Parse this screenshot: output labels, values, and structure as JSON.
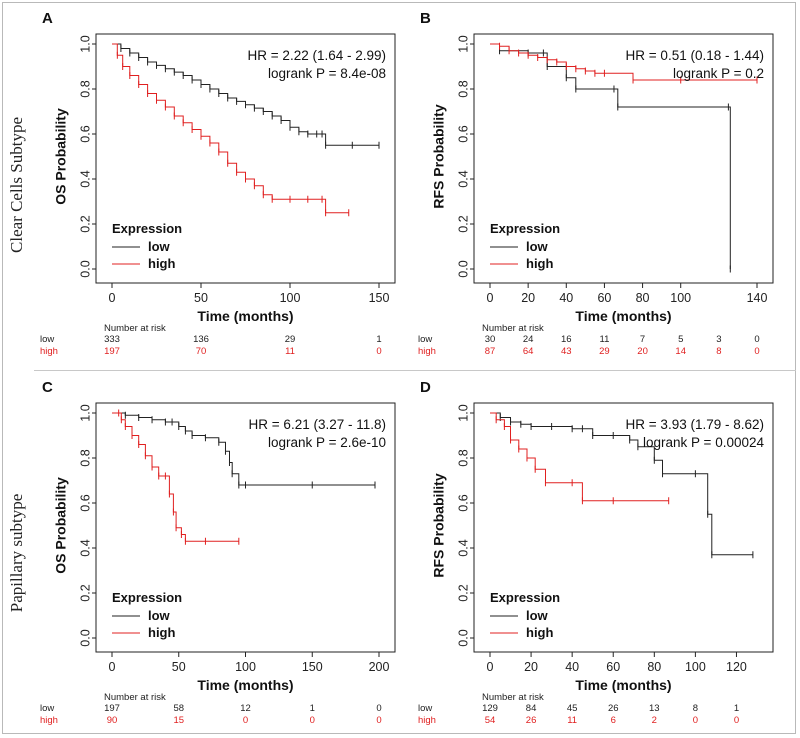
{
  "row_labels": [
    "Clear Cells Subtype",
    "Papillary subtype"
  ],
  "colors": {
    "low": "#222222",
    "high": "#e02020"
  },
  "chart_data": [
    {
      "panel": "A",
      "type": "line",
      "subtype": "kaplan-meier",
      "ylabel": "OS Probability",
      "xlabel": "Time (months)",
      "xlim": [
        0,
        150
      ],
      "ylim": [
        0,
        1
      ],
      "xticks": [
        "0",
        "50",
        "100",
        "150"
      ],
      "yticks": [
        "0.0",
        "0.2",
        "0.4",
        "0.6",
        "0.8",
        "1.0"
      ],
      "hr_text": "HR = 2.22 (1.64 - 2.99)",
      "p_text": "logrank P = 8.4e-08",
      "legend_title": "Expression",
      "series": [
        {
          "name": "low",
          "points": [
            [
              0,
              1
            ],
            [
              5,
              0.98
            ],
            [
              10,
              0.96
            ],
            [
              15,
              0.94
            ],
            [
              20,
              0.92
            ],
            [
              25,
              0.905
            ],
            [
              30,
              0.89
            ],
            [
              35,
              0.875
            ],
            [
              40,
              0.86
            ],
            [
              45,
              0.84
            ],
            [
              50,
              0.82
            ],
            [
              55,
              0.8
            ],
            [
              60,
              0.78
            ],
            [
              65,
              0.76
            ],
            [
              70,
              0.745
            ],
            [
              75,
              0.73
            ],
            [
              80,
              0.715
            ],
            [
              85,
              0.7
            ],
            [
              90,
              0.68
            ],
            [
              95,
              0.66
            ],
            [
              100,
              0.63
            ],
            [
              105,
              0.61
            ],
            [
              110,
              0.6
            ],
            [
              115,
              0.6
            ],
            [
              118,
              0.6
            ],
            [
              120,
              0.55
            ],
            [
              135,
              0.55
            ],
            [
              150,
              0.55
            ]
          ]
        },
        {
          "name": "high",
          "points": [
            [
              0,
              1
            ],
            [
              3,
              0.95
            ],
            [
              6,
              0.9
            ],
            [
              10,
              0.86
            ],
            [
              15,
              0.82
            ],
            [
              20,
              0.78
            ],
            [
              25,
              0.75
            ],
            [
              30,
              0.72
            ],
            [
              35,
              0.68
            ],
            [
              40,
              0.65
            ],
            [
              45,
              0.62
            ],
            [
              50,
              0.59
            ],
            [
              55,
              0.56
            ],
            [
              60,
              0.52
            ],
            [
              65,
              0.47
            ],
            [
              70,
              0.43
            ],
            [
              75,
              0.4
            ],
            [
              80,
              0.37
            ],
            [
              85,
              0.33
            ],
            [
              90,
              0.31
            ],
            [
              100,
              0.31
            ],
            [
              110,
              0.31
            ],
            [
              118,
              0.31
            ],
            [
              120,
              0.25
            ],
            [
              133,
              0.25
            ]
          ]
        }
      ],
      "risk_title": "Number at risk",
      "risk_x": [
        0,
        50,
        100,
        150
      ],
      "risk": {
        "low": [
          "333",
          "136",
          "29",
          "1"
        ],
        "high": [
          "197",
          "70",
          "11",
          "0"
        ]
      }
    },
    {
      "panel": "B",
      "type": "line",
      "subtype": "kaplan-meier",
      "ylabel": "RFS Probability",
      "xlabel": "Time (months)",
      "xlim": [
        0,
        140
      ],
      "ylim": [
        0,
        1
      ],
      "xticks": [
        "0",
        "20",
        "40",
        "60",
        "80",
        "100",
        "140"
      ],
      "xtick_values": [
        0,
        20,
        40,
        60,
        80,
        100,
        140
      ],
      "yticks": [
        "0.0",
        "0.2",
        "0.4",
        "0.6",
        "0.8",
        "1.0"
      ],
      "hr_text": "HR = 0.51 (0.18 - 1.44)",
      "p_text": "logrank P = 0.2",
      "legend_title": "Expression",
      "series": [
        {
          "name": "low",
          "points": [
            [
              0,
              1
            ],
            [
              5,
              0.97
            ],
            [
              20,
              0.96
            ],
            [
              28,
              0.96
            ],
            [
              30,
              0.9
            ],
            [
              40,
              0.85
            ],
            [
              45,
              0.8
            ],
            [
              65,
              0.8
            ],
            [
              67,
              0.72
            ],
            [
              125,
              0.72
            ],
            [
              126,
              0
            ]
          ]
        },
        {
          "name": "high",
          "points": [
            [
              0,
              1
            ],
            [
              5,
              0.99
            ],
            [
              10,
              0.97
            ],
            [
              15,
              0.96
            ],
            [
              20,
              0.95
            ],
            [
              25,
              0.94
            ],
            [
              30,
              0.93
            ],
            [
              35,
              0.92
            ],
            [
              40,
              0.9
            ],
            [
              45,
              0.89
            ],
            [
              50,
              0.88
            ],
            [
              55,
              0.87
            ],
            [
              60,
              0.87
            ],
            [
              75,
              0.84
            ],
            [
              100,
              0.84
            ],
            [
              140,
              0.84
            ]
          ]
        }
      ],
      "risk_title": "Number at risk",
      "risk_x": [
        0,
        20,
        40,
        60,
        80,
        100,
        120,
        140
      ],
      "risk": {
        "low": [
          "30",
          "24",
          "16",
          "11",
          "7",
          "5",
          "3",
          "0"
        ],
        "high": [
          "87",
          "64",
          "43",
          "29",
          "20",
          "14",
          "8",
          "0"
        ]
      }
    },
    {
      "panel": "C",
      "type": "line",
      "subtype": "kaplan-meier",
      "ylabel": "OS Probability",
      "xlabel": "Time (months)",
      "xlim": [
        0,
        200
      ],
      "ylim": [
        0,
        1
      ],
      "xticks": [
        "0",
        "50",
        "100",
        "150",
        "200"
      ],
      "yticks": [
        "0.0",
        "0.2",
        "0.4",
        "0.6",
        "0.8",
        "1.0"
      ],
      "hr_text": "HR = 6.21 (3.27 - 11.8)",
      "p_text": "logrank P = 2.6e-10",
      "legend_title": "Expression",
      "series": [
        {
          "name": "low",
          "points": [
            [
              0,
              1
            ],
            [
              10,
              0.99
            ],
            [
              20,
              0.98
            ],
            [
              30,
              0.97
            ],
            [
              40,
              0.96
            ],
            [
              45,
              0.96
            ],
            [
              50,
              0.94
            ],
            [
              55,
              0.92
            ],
            [
              60,
              0.9
            ],
            [
              70,
              0.89
            ],
            [
              80,
              0.87
            ],
            [
              85,
              0.83
            ],
            [
              88,
              0.78
            ],
            [
              90,
              0.73
            ],
            [
              95,
              0.68
            ],
            [
              100,
              0.68
            ],
            [
              150,
              0.68
            ],
            [
              197,
              0.68
            ]
          ]
        },
        {
          "name": "high",
          "points": [
            [
              0,
              1
            ],
            [
              5,
              1
            ],
            [
              7,
              0.97
            ],
            [
              10,
              0.94
            ],
            [
              15,
              0.9
            ],
            [
              20,
              0.86
            ],
            [
              25,
              0.81
            ],
            [
              30,
              0.76
            ],
            [
              35,
              0.72
            ],
            [
              40,
              0.72
            ],
            [
              43,
              0.64
            ],
            [
              46,
              0.56
            ],
            [
              48,
              0.49
            ],
            [
              52,
              0.46
            ],
            [
              55,
              0.43
            ],
            [
              70,
              0.43
            ],
            [
              95,
              0.43
            ]
          ]
        }
      ],
      "risk_title": "Number at risk",
      "risk_x": [
        0,
        50,
        100,
        150,
        200
      ],
      "risk": {
        "low": [
          "197",
          "58",
          "12",
          "1",
          "0"
        ],
        "high": [
          "90",
          "15",
          "0",
          "0",
          "0"
        ]
      }
    },
    {
      "panel": "D",
      "type": "line",
      "subtype": "kaplan-meier",
      "ylabel": "RFS Probability",
      "xlabel": "Time (months)",
      "xlim": [
        0,
        130
      ],
      "ylim": [
        0,
        1
      ],
      "xticks": [
        "0",
        "20",
        "40",
        "60",
        "80",
        "100",
        "120"
      ],
      "yticks": [
        "0.0",
        "0.2",
        "0.4",
        "0.6",
        "0.8",
        "1.0"
      ],
      "hr_text": "HR = 3.93 (1.79 - 8.62)",
      "p_text": "logrank P = 0.00024",
      "legend_title": "Expression",
      "series": [
        {
          "name": "low",
          "points": [
            [
              0,
              1
            ],
            [
              5,
              0.98
            ],
            [
              10,
              0.96
            ],
            [
              15,
              0.95
            ],
            [
              20,
              0.94
            ],
            [
              30,
              0.94
            ],
            [
              40,
              0.93
            ],
            [
              45,
              0.93
            ],
            [
              50,
              0.9
            ],
            [
              60,
              0.9
            ],
            [
              68,
              0.88
            ],
            [
              72,
              0.85
            ],
            [
              80,
              0.79
            ],
            [
              84,
              0.73
            ],
            [
              100,
              0.73
            ],
            [
              106,
              0.55
            ],
            [
              108,
              0.37
            ],
            [
              128,
              0.37
            ]
          ]
        },
        {
          "name": "high",
          "points": [
            [
              0,
              1
            ],
            [
              3,
              0.97
            ],
            [
              7,
              0.94
            ],
            [
              10,
              0.88
            ],
            [
              14,
              0.84
            ],
            [
              18,
              0.8
            ],
            [
              22,
              0.75
            ],
            [
              27,
              0.69
            ],
            [
              40,
              0.69
            ],
            [
              45,
              0.61
            ],
            [
              60,
              0.61
            ],
            [
              87,
              0.61
            ]
          ]
        }
      ],
      "risk_title": "Number at risk",
      "risk_x": [
        0,
        20,
        40,
        60,
        80,
        100,
        120
      ],
      "risk": {
        "low": [
          "129",
          "84",
          "45",
          "26",
          "13",
          "8",
          "1"
        ],
        "high": [
          "54",
          "26",
          "11",
          "6",
          "2",
          "0",
          "0"
        ]
      }
    }
  ]
}
